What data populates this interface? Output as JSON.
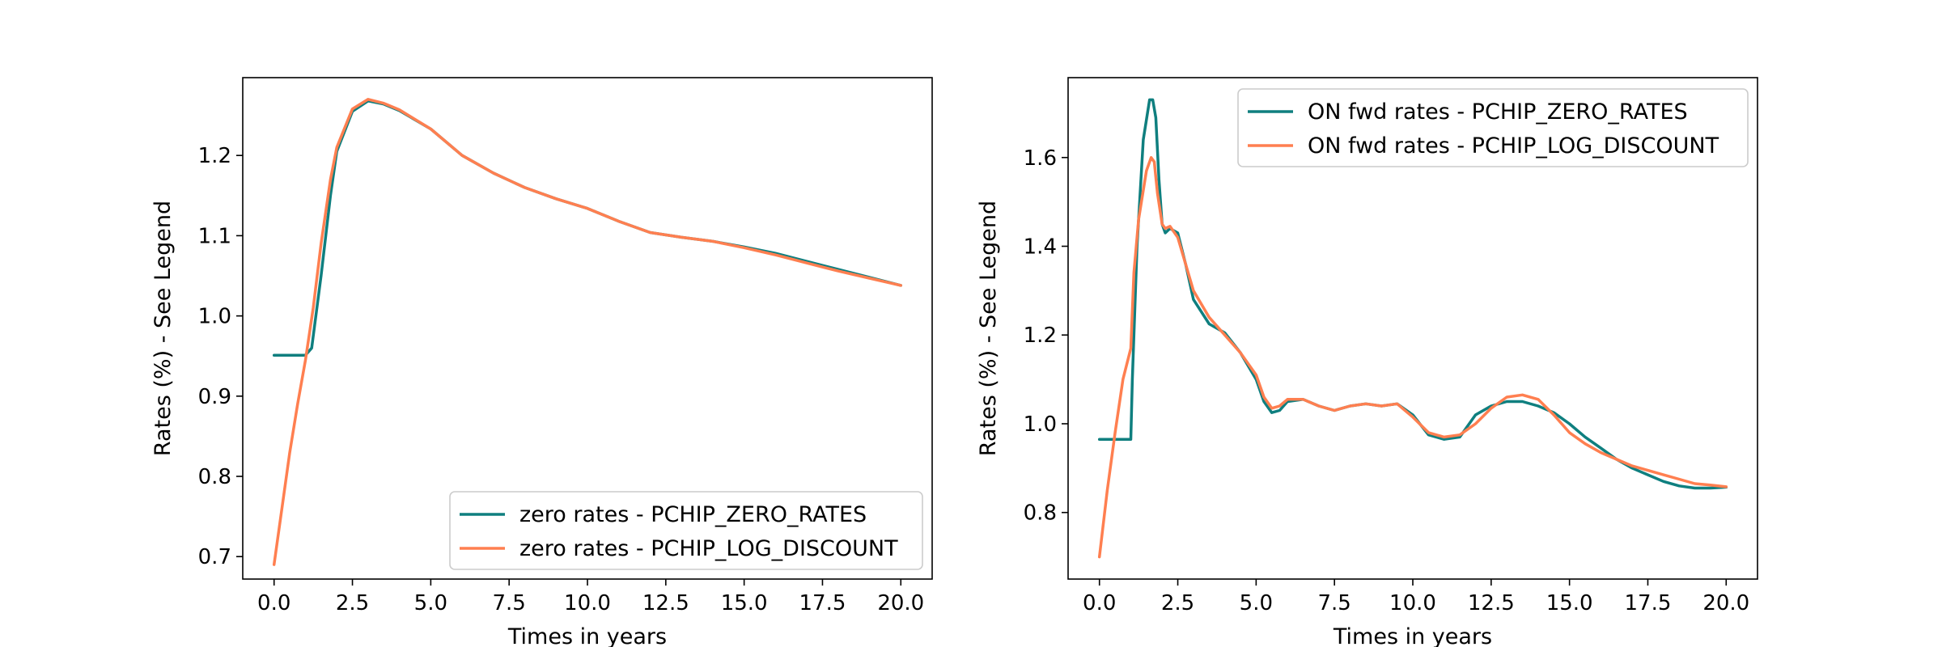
{
  "chart_data": [
    {
      "type": "line",
      "title": "",
      "xlabel": "Times in years",
      "ylabel": "Rates (%) - See Legend",
      "xlim": [
        -1.0,
        21.0
      ],
      "ylim": [
        0.672,
        1.297
      ],
      "x_ticks": [
        0.0,
        2.5,
        5.0,
        7.5,
        10.0,
        12.5,
        15.0,
        17.5,
        20.0
      ],
      "x_tick_labels": [
        "0.0",
        "2.5",
        "5.0",
        "7.5",
        "10.0",
        "12.5",
        "15.0",
        "17.5",
        "20.0"
      ],
      "y_ticks": [
        0.7,
        0.8,
        0.9,
        1.0,
        1.1,
        1.2
      ],
      "y_tick_labels": [
        "0.7",
        "0.8",
        "0.9",
        "1.0",
        "1.1",
        "1.2"
      ],
      "grid": false,
      "legend_position": "lower-right",
      "series": [
        {
          "name": "zero rates - PCHIP_ZERO_RATES",
          "color": "#0f7f7f",
          "x": [
            0.0,
            0.5,
            1.0,
            1.2,
            1.5,
            1.8,
            2.0,
            2.5,
            3.0,
            3.5,
            4.0,
            5.0,
            6.0,
            7.0,
            8.0,
            9.0,
            10.0,
            11.0,
            12.0,
            13.0,
            14.0,
            15.0,
            16.0,
            17.0,
            18.0,
            19.0,
            20.0
          ],
          "y": [
            0.951,
            0.951,
            0.951,
            0.96,
            1.05,
            1.15,
            1.205,
            1.255,
            1.268,
            1.264,
            1.256,
            1.233,
            1.2,
            1.178,
            1.16,
            1.146,
            1.134,
            1.118,
            1.104,
            1.098,
            1.093,
            1.086,
            1.078,
            1.068,
            1.058,
            1.048,
            1.038
          ]
        },
        {
          "name": "zero rates - PCHIP_LOG_DISCOUNT",
          "color": "#ff7f50",
          "x": [
            0.0,
            0.25,
            0.5,
            0.75,
            1.0,
            1.25,
            1.5,
            1.8,
            2.0,
            2.5,
            3.0,
            3.5,
            4.0,
            5.0,
            6.0,
            7.0,
            8.0,
            9.0,
            10.0,
            11.0,
            12.0,
            13.0,
            14.0,
            15.0,
            16.0,
            17.0,
            18.0,
            19.0,
            20.0
          ],
          "y": [
            0.69,
            0.76,
            0.83,
            0.89,
            0.945,
            1.01,
            1.09,
            1.17,
            1.21,
            1.258,
            1.27,
            1.265,
            1.257,
            1.233,
            1.2,
            1.178,
            1.16,
            1.146,
            1.134,
            1.118,
            1.104,
            1.098,
            1.093,
            1.085,
            1.076,
            1.066,
            1.056,
            1.047,
            1.038
          ]
        }
      ]
    },
    {
      "type": "line",
      "title": "",
      "xlabel": "Times in years",
      "ylabel": "Rates (%) - See Legend",
      "xlim": [
        -1.0,
        21.0
      ],
      "ylim": [
        0.65,
        1.78
      ],
      "x_ticks": [
        0.0,
        2.5,
        5.0,
        7.5,
        10.0,
        12.5,
        15.0,
        17.5,
        20.0
      ],
      "x_tick_labels": [
        "0.0",
        "2.5",
        "5.0",
        "7.5",
        "10.0",
        "12.5",
        "15.0",
        "17.5",
        "20.0"
      ],
      "y_ticks": [
        0.8,
        1.0,
        1.2,
        1.4,
        1.6
      ],
      "y_tick_labels": [
        "0.8",
        "1.0",
        "1.2",
        "1.4",
        "1.6"
      ],
      "grid": false,
      "legend_position": "upper-right",
      "series": [
        {
          "name": "ON fwd rates - PCHIP_ZERO_RATES",
          "color": "#0f7f7f",
          "x": [
            0.0,
            0.5,
            1.0,
            1.05,
            1.2,
            1.4,
            1.6,
            1.7,
            1.8,
            1.9,
            2.0,
            2.1,
            2.25,
            2.5,
            2.75,
            3.0,
            3.5,
            4.0,
            4.5,
            5.0,
            5.25,
            5.5,
            5.75,
            6.0,
            6.5,
            7.0,
            7.5,
            8.0,
            8.5,
            9.0,
            9.5,
            10.0,
            10.5,
            11.0,
            11.5,
            12.0,
            12.5,
            13.0,
            13.5,
            14.0,
            14.5,
            15.0,
            15.5,
            16.0,
            16.5,
            17.0,
            17.5,
            18.0,
            18.5,
            19.0,
            19.5,
            20.0
          ],
          "y": [
            0.965,
            0.965,
            0.965,
            1.1,
            1.4,
            1.64,
            1.73,
            1.73,
            1.69,
            1.55,
            1.45,
            1.43,
            1.44,
            1.43,
            1.36,
            1.28,
            1.225,
            1.205,
            1.16,
            1.1,
            1.05,
            1.025,
            1.03,
            1.05,
            1.055,
            1.04,
            1.03,
            1.04,
            1.045,
            1.04,
            1.045,
            1.02,
            0.975,
            0.965,
            0.97,
            1.02,
            1.04,
            1.05,
            1.05,
            1.04,
            1.025,
            1.0,
            0.97,
            0.945,
            0.92,
            0.9,
            0.885,
            0.87,
            0.86,
            0.855,
            0.855,
            0.857
          ]
        },
        {
          "name": "ON fwd rates - PCHIP_LOG_DISCOUNT",
          "color": "#ff7f50",
          "x": [
            0.0,
            0.25,
            0.5,
            0.75,
            1.0,
            1.1,
            1.25,
            1.5,
            1.65,
            1.75,
            1.85,
            2.0,
            2.1,
            2.25,
            2.5,
            2.75,
            3.0,
            3.5,
            4.0,
            4.5,
            5.0,
            5.25,
            5.5,
            5.75,
            6.0,
            6.5,
            7.0,
            7.5,
            8.0,
            8.5,
            9.0,
            9.5,
            10.0,
            10.5,
            11.0,
            11.5,
            12.0,
            12.5,
            13.0,
            13.5,
            14.0,
            14.5,
            15.0,
            15.5,
            16.0,
            16.5,
            17.0,
            17.5,
            18.0,
            18.5,
            19.0,
            19.5,
            20.0
          ],
          "y": [
            0.7,
            0.85,
            0.98,
            1.1,
            1.17,
            1.34,
            1.46,
            1.57,
            1.6,
            1.59,
            1.52,
            1.45,
            1.44,
            1.445,
            1.42,
            1.36,
            1.3,
            1.24,
            1.2,
            1.16,
            1.11,
            1.06,
            1.035,
            1.04,
            1.055,
            1.055,
            1.04,
            1.03,
            1.04,
            1.045,
            1.04,
            1.045,
            1.015,
            0.98,
            0.97,
            0.975,
            1.0,
            1.035,
            1.06,
            1.065,
            1.055,
            1.02,
            0.98,
            0.955,
            0.935,
            0.92,
            0.905,
            0.895,
            0.885,
            0.875,
            0.865,
            0.862,
            0.858
          ]
        }
      ]
    }
  ]
}
